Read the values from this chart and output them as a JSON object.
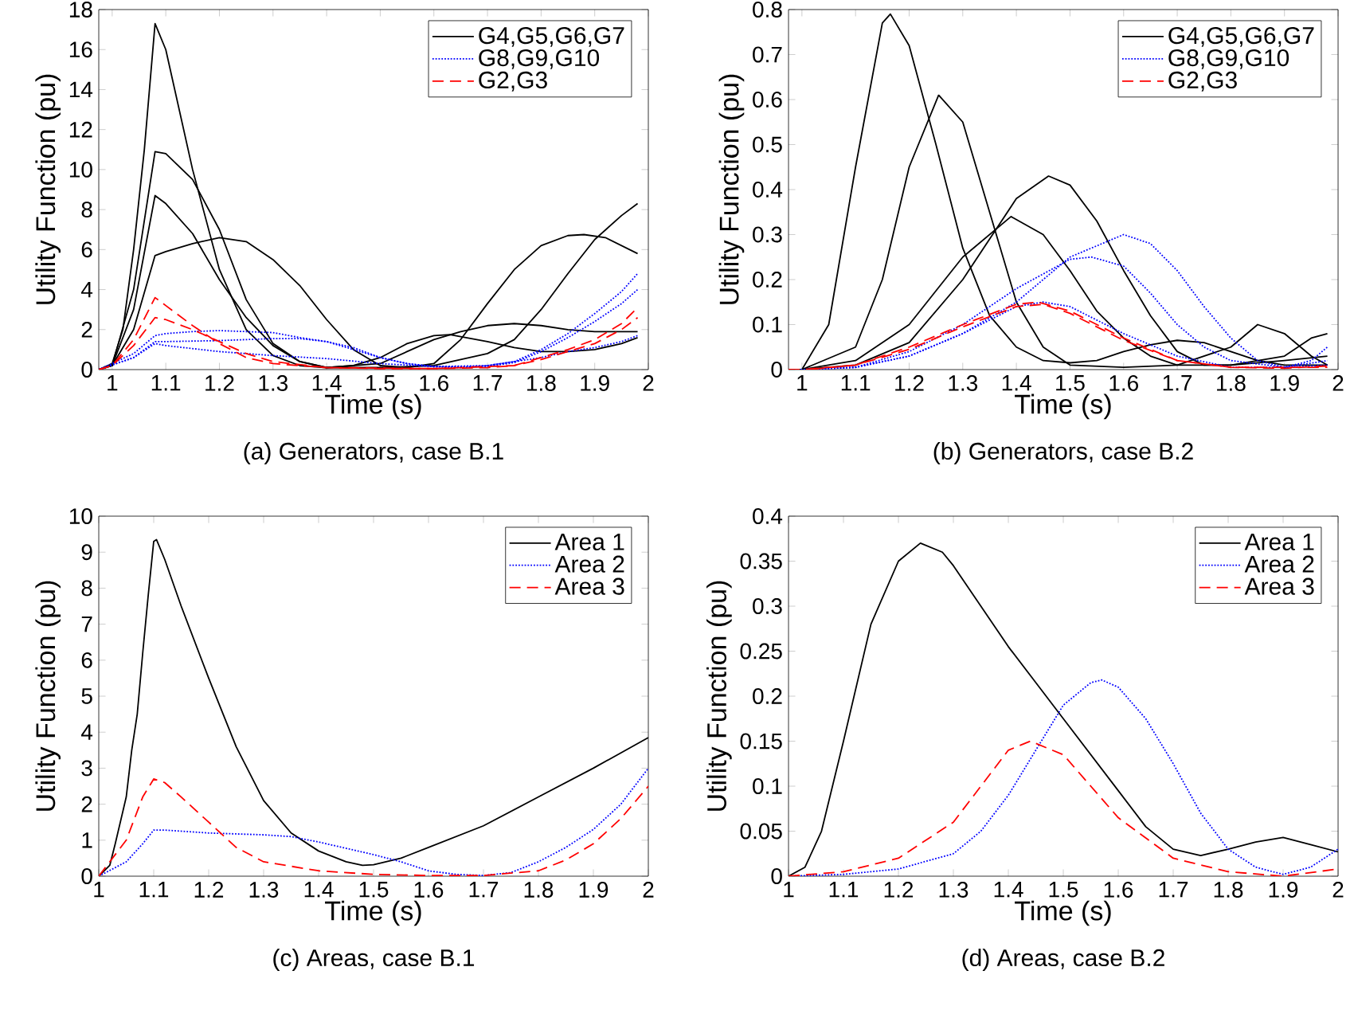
{
  "chart_data": [
    {
      "type": "line",
      "title": "(a) Generators, case B.1",
      "xlabel": "Time (s)",
      "ylabel": "Utility Function (pu)",
      "xlim": [
        0.975,
        2
      ],
      "ylim": [
        0,
        18
      ],
      "xticks": [
        1,
        1.1,
        1.2,
        1.3,
        1.4,
        1.5,
        1.6,
        1.7,
        1.8,
        1.9,
        2
      ],
      "yticks": [
        0,
        2,
        4,
        6,
        8,
        10,
        12,
        14,
        16,
        18
      ],
      "legend": "top right",
      "series": [
        {
          "name": "G4,G5,G6,G7",
          "color": "#000000",
          "line_style": "solid",
          "x": [
            0.975,
            1.0,
            1.02,
            1.04,
            1.06,
            1.08,
            1.1,
            1.15,
            1.2,
            1.25,
            1.3,
            1.35,
            1.4,
            1.5,
            1.6,
            1.7,
            1.75,
            1.8,
            1.85,
            1.9,
            1.95,
            1.98
          ],
          "values": [
            0,
            0.3,
            2,
            6,
            11,
            17.3,
            16,
            10,
            5,
            2,
            0.7,
            0.2,
            0.1,
            0.1,
            0.2,
            0.8,
            1.5,
            3,
            4.8,
            6.5,
            7.7,
            8.3
          ]
        },
        {
          "color": "#000000",
          "line_style": "solid",
          "x": [
            0.975,
            1.0,
            1.04,
            1.08,
            1.1,
            1.15,
            1.2,
            1.25,
            1.3,
            1.35,
            1.4,
            1.5,
            1.55,
            1.6,
            1.65,
            1.7,
            1.75,
            1.8,
            1.85,
            1.9,
            1.95,
            1.98
          ],
          "values": [
            0,
            0.2,
            4,
            10.9,
            10.8,
            9.5,
            7,
            3.5,
            1.3,
            0.4,
            0.1,
            0.3,
            0.9,
            1.5,
            1.9,
            2.2,
            2.3,
            2.2,
            2.0,
            1.9,
            1.9,
            1.9
          ]
        },
        {
          "color": "#000000",
          "line_style": "solid",
          "x": [
            0.975,
            1.0,
            1.04,
            1.08,
            1.1,
            1.15,
            1.2,
            1.25,
            1.3,
            1.35,
            1.4,
            1.45,
            1.5,
            1.55,
            1.6,
            1.63,
            1.7,
            1.75,
            1.8,
            1.85,
            1.9,
            1.95,
            1.98
          ],
          "values": [
            0,
            0.2,
            3,
            8.7,
            8.3,
            6.8,
            4.5,
            2.6,
            1.2,
            0.4,
            0.1,
            0.2,
            0.6,
            1.3,
            1.7,
            1.75,
            1.4,
            1.1,
            0.9,
            0.9,
            1.0,
            1.3,
            1.6
          ]
        },
        {
          "color": "#000000",
          "line_style": "solid",
          "x": [
            0.975,
            1.0,
            1.04,
            1.08,
            1.1,
            1.15,
            1.2,
            1.25,
            1.3,
            1.35,
            1.4,
            1.45,
            1.5,
            1.55,
            1.6,
            1.65,
            1.7,
            1.75,
            1.8,
            1.85,
            1.88,
            1.92,
            1.98
          ],
          "values": [
            0,
            0.2,
            2,
            5.7,
            5.9,
            6.3,
            6.6,
            6.4,
            5.5,
            4.2,
            2.5,
            1.0,
            0.2,
            0.1,
            0.3,
            1.5,
            3.3,
            5.0,
            6.2,
            6.7,
            6.75,
            6.6,
            5.8
          ]
        },
        {
          "name": "G8,G9,G10",
          "color": "#0000ff",
          "line_style": "dotted",
          "x": [
            0.975,
            1.04,
            1.08,
            1.1,
            1.15,
            1.2,
            1.3,
            1.35,
            1.4,
            1.45,
            1.5,
            1.55,
            1.6,
            1.65,
            1.7,
            1.75,
            1.8,
            1.85,
            1.9,
            1.95,
            1.98
          ],
          "values": [
            0,
            0.8,
            1.7,
            1.8,
            1.9,
            1.95,
            1.85,
            1.6,
            1.4,
            1.1,
            0.6,
            0.3,
            0.15,
            0.1,
            0.2,
            0.4,
            1.0,
            1.8,
            2.8,
            3.9,
            4.8
          ]
        },
        {
          "color": "#0000ff",
          "line_style": "dotted",
          "x": [
            0.975,
            1.04,
            1.08,
            1.1,
            1.2,
            1.3,
            1.35,
            1.4,
            1.45,
            1.5,
            1.55,
            1.6,
            1.7,
            1.75,
            1.8,
            1.85,
            1.9,
            1.95,
            1.98
          ],
          "values": [
            0,
            0.6,
            1.4,
            1.4,
            1.45,
            1.55,
            1.55,
            1.4,
            1.0,
            0.6,
            0.3,
            0.15,
            0.15,
            0.35,
            0.9,
            1.6,
            2.4,
            3.3,
            4.0
          ]
        },
        {
          "color": "#0000ff",
          "line_style": "dotted",
          "x": [
            0.975,
            1.04,
            1.08,
            1.1,
            1.2,
            1.3,
            1.4,
            1.5,
            1.6,
            1.7,
            1.8,
            1.85,
            1.9,
            1.95,
            1.98
          ],
          "values": [
            0,
            0.6,
            1.3,
            1.2,
            0.9,
            0.7,
            0.55,
            0.3,
            0.15,
            0.2,
            0.6,
            0.9,
            1.1,
            1.4,
            1.7
          ]
        },
        {
          "name": "G2,G3",
          "color": "#ff0000",
          "line_style": "dashed",
          "x": [
            0.975,
            1.0,
            1.04,
            1.08,
            1.1,
            1.15,
            1.2,
            1.25,
            1.3,
            1.4,
            1.5,
            1.6,
            1.7,
            1.75,
            1.8,
            1.85,
            1.9,
            1.95,
            1.98
          ],
          "values": [
            0,
            0.2,
            1.5,
            3.6,
            3.2,
            2.2,
            1.3,
            0.6,
            0.3,
            0.1,
            0.05,
            0.05,
            0.1,
            0.2,
            0.6,
            1.0,
            1.5,
            2.3,
            3.1
          ]
        },
        {
          "color": "#ff0000",
          "line_style": "dashed",
          "x": [
            0.975,
            1.0,
            1.04,
            1.08,
            1.1,
            1.15,
            1.2,
            1.25,
            1.3,
            1.4,
            1.6,
            1.75,
            1.8,
            1.85,
            1.9,
            1.95,
            1.98
          ],
          "values": [
            0,
            0.2,
            1.2,
            2.6,
            2.5,
            2.0,
            1.4,
            0.8,
            0.4,
            0.1,
            0.05,
            0.2,
            0.5,
            0.9,
            1.3,
            2.0,
            2.6
          ]
        }
      ]
    },
    {
      "type": "line",
      "title": "(b) Generators, case B.2",
      "xlabel": "Time (s)",
      "ylabel": "Utility Function (pu)",
      "xlim": [
        0.975,
        2
      ],
      "ylim": [
        0,
        0.8
      ],
      "xticks": [
        1,
        1.1,
        1.2,
        1.3,
        1.4,
        1.5,
        1.6,
        1.7,
        1.8,
        1.9,
        2
      ],
      "yticks": [
        0,
        0.1,
        0.2,
        0.3,
        0.4,
        0.5,
        0.6,
        0.7,
        0.8
      ],
      "legend": "top right",
      "series": [
        {
          "name": "G4,G5,G6,G7",
          "color": "#000000",
          "line_style": "solid",
          "x": [
            0.975,
            1.0,
            1.05,
            1.1,
            1.15,
            1.165,
            1.2,
            1.25,
            1.3,
            1.35,
            1.4,
            1.45,
            1.5,
            1.55,
            1.6,
            1.65,
            1.7,
            1.75,
            1.8,
            1.85,
            1.9,
            1.98
          ],
          "values": [
            0,
            0,
            0.1,
            0.45,
            0.77,
            0.79,
            0.72,
            0.5,
            0.27,
            0.12,
            0.05,
            0.02,
            0.015,
            0.02,
            0.04,
            0.055,
            0.065,
            0.06,
            0.04,
            0.02,
            0.01,
            0.01
          ]
        },
        {
          "color": "#000000",
          "line_style": "solid",
          "x": [
            0.975,
            1.0,
            1.1,
            1.15,
            1.2,
            1.255,
            1.3,
            1.35,
            1.4,
            1.45,
            1.5,
            1.6,
            1.7,
            1.8,
            1.85,
            1.9,
            1.95,
            1.98
          ],
          "values": [
            0,
            0,
            0.05,
            0.2,
            0.45,
            0.61,
            0.55,
            0.35,
            0.15,
            0.05,
            0.01,
            0.005,
            0.01,
            0.05,
            0.1,
            0.08,
            0.03,
            0.01
          ]
        },
        {
          "color": "#000000",
          "line_style": "solid",
          "x": [
            0.975,
            1.0,
            1.1,
            1.2,
            1.3,
            1.39,
            1.45,
            1.5,
            1.55,
            1.6,
            1.65,
            1.7,
            1.8,
            1.9,
            1.95,
            1.98
          ],
          "values": [
            0,
            0,
            0.02,
            0.1,
            0.25,
            0.34,
            0.3,
            0.22,
            0.13,
            0.07,
            0.03,
            0.01,
            0.01,
            0.03,
            0.07,
            0.08
          ]
        },
        {
          "color": "#000000",
          "line_style": "solid",
          "x": [
            0.975,
            1.0,
            1.1,
            1.2,
            1.3,
            1.4,
            1.46,
            1.5,
            1.55,
            1.6,
            1.65,
            1.7,
            1.75,
            1.8,
            1.9,
            1.98
          ],
          "values": [
            0,
            0,
            0.01,
            0.06,
            0.2,
            0.38,
            0.43,
            0.41,
            0.33,
            0.22,
            0.12,
            0.04,
            0.01,
            0.01,
            0.02,
            0.03
          ]
        },
        {
          "name": "G8,G9,G10",
          "color": "#0000ff",
          "line_style": "dotted",
          "x": [
            0.975,
            1.0,
            1.1,
            1.2,
            1.3,
            1.4,
            1.5,
            1.6,
            1.65,
            1.7,
            1.75,
            1.8,
            1.85,
            1.9,
            1.95,
            1.98
          ],
          "values": [
            0,
            0,
            0.005,
            0.03,
            0.08,
            0.15,
            0.25,
            0.3,
            0.28,
            0.22,
            0.14,
            0.07,
            0.02,
            0.005,
            0.02,
            0.05
          ]
        },
        {
          "color": "#0000ff",
          "line_style": "dotted",
          "x": [
            0.975,
            1.0,
            1.1,
            1.2,
            1.3,
            1.4,
            1.5,
            1.54,
            1.6,
            1.65,
            1.7,
            1.75,
            1.8,
            1.9,
            1.98
          ],
          "values": [
            0,
            0,
            0.005,
            0.04,
            0.1,
            0.18,
            0.245,
            0.25,
            0.23,
            0.17,
            0.1,
            0.05,
            0.02,
            0.005,
            0.02
          ]
        },
        {
          "color": "#0000ff",
          "line_style": "dotted",
          "x": [
            0.975,
            1.0,
            1.1,
            1.2,
            1.3,
            1.4,
            1.45,
            1.5,
            1.6,
            1.7,
            1.8,
            1.9,
            1.98
          ],
          "values": [
            0,
            0,
            0.005,
            0.03,
            0.08,
            0.14,
            0.15,
            0.14,
            0.08,
            0.03,
            0.005,
            0.005,
            0.01
          ]
        },
        {
          "name": "G2,G3",
          "color": "#ff0000",
          "line_style": "dashed",
          "x": [
            0.975,
            1.0,
            1.1,
            1.2,
            1.3,
            1.4,
            1.44,
            1.5,
            1.6,
            1.7,
            1.8,
            1.98
          ],
          "values": [
            0,
            0,
            0.01,
            0.05,
            0.1,
            0.145,
            0.15,
            0.13,
            0.07,
            0.02,
            0.005,
            0.005
          ]
        },
        {
          "color": "#ff0000",
          "line_style": "dashed",
          "x": [
            1.02,
            1.1,
            1.2,
            1.3,
            1.4,
            1.45,
            1.5,
            1.6,
            1.7,
            1.8,
            1.9,
            1.98
          ],
          "values": [
            0.001,
            0.01,
            0.045,
            0.095,
            0.14,
            0.145,
            0.125,
            0.065,
            0.02,
            0.005,
            0.003,
            0.008
          ]
        }
      ]
    },
    {
      "type": "line",
      "title": "(c) Areas, case B.1",
      "xlabel": "Time (s)",
      "ylabel": "Utility Function (pu)",
      "xlim": [
        1,
        2
      ],
      "ylim": [
        0,
        10
      ],
      "xticks": [
        1,
        1.1,
        1.2,
        1.3,
        1.4,
        1.5,
        1.6,
        1.7,
        1.8,
        1.9,
        2
      ],
      "yticks": [
        0,
        1,
        2,
        3,
        4,
        5,
        6,
        7,
        8,
        9,
        10
      ],
      "legend": "top right",
      "series": [
        {
          "name": "Area 1",
          "color": "#000000",
          "line_style": "solid",
          "x": [
            1.0,
            1.02,
            1.03,
            1.05,
            1.06,
            1.07,
            1.08,
            1.09,
            1.1,
            1.105,
            1.12,
            1.15,
            1.2,
            1.25,
            1.3,
            1.35,
            1.4,
            1.45,
            1.48,
            1.5,
            1.55,
            1.6,
            1.7,
            1.8,
            1.9,
            2.0
          ],
          "values": [
            0,
            0.3,
            0.9,
            2.2,
            3.5,
            4.5,
            6.2,
            7.8,
            9.3,
            9.35,
            8.8,
            7.5,
            5.5,
            3.6,
            2.1,
            1.2,
            0.7,
            0.4,
            0.3,
            0.32,
            0.5,
            0.8,
            1.4,
            2.2,
            3.0,
            3.85
          ]
        },
        {
          "name": "Area 2",
          "color": "#0000ff",
          "line_style": "dotted",
          "x": [
            1.0,
            1.05,
            1.08,
            1.1,
            1.12,
            1.2,
            1.3,
            1.35,
            1.4,
            1.5,
            1.55,
            1.6,
            1.65,
            1.7,
            1.75,
            1.8,
            1.85,
            1.9,
            1.95,
            2.0
          ],
          "values": [
            0,
            0.4,
            0.9,
            1.28,
            1.28,
            1.2,
            1.15,
            1.1,
            0.95,
            0.6,
            0.4,
            0.15,
            0.05,
            0.02,
            0.1,
            0.4,
            0.8,
            1.3,
            2.0,
            3.0
          ]
        },
        {
          "name": "Area 3",
          "color": "#ff0000",
          "line_style": "dashed",
          "x": [
            1.0,
            1.05,
            1.08,
            1.1,
            1.12,
            1.15,
            1.2,
            1.25,
            1.3,
            1.4,
            1.5,
            1.6,
            1.7,
            1.8,
            1.85,
            1.9,
            1.95,
            2.0
          ],
          "values": [
            0,
            1.0,
            2.2,
            2.7,
            2.6,
            2.2,
            1.5,
            0.8,
            0.4,
            0.15,
            0.05,
            0.02,
            0.02,
            0.15,
            0.45,
            0.9,
            1.6,
            2.5
          ]
        }
      ]
    },
    {
      "type": "line",
      "title": "(d) Areas, case B.2",
      "xlabel": "Time (s)",
      "ylabel": "Utility Function (pu)",
      "xlim": [
        1,
        2
      ],
      "ylim": [
        0,
        0.4
      ],
      "xticks": [
        1,
        1.1,
        1.2,
        1.3,
        1.4,
        1.5,
        1.6,
        1.7,
        1.8,
        1.9,
        2
      ],
      "yticks": [
        0,
        0.05,
        0.1,
        0.15,
        0.2,
        0.25,
        0.3,
        0.35,
        0.4
      ],
      "legend": "top right",
      "series": [
        {
          "name": "Area 1",
          "color": "#000000",
          "line_style": "solid",
          "x": [
            1.0,
            1.03,
            1.06,
            1.1,
            1.15,
            1.2,
            1.24,
            1.28,
            1.3,
            1.35,
            1.4,
            1.45,
            1.5,
            1.55,
            1.6,
            1.65,
            1.7,
            1.75,
            1.8,
            1.85,
            1.9,
            1.95,
            2.0
          ],
          "values": [
            0,
            0.01,
            0.05,
            0.15,
            0.28,
            0.35,
            0.37,
            0.36,
            0.345,
            0.3,
            0.255,
            0.215,
            0.175,
            0.135,
            0.095,
            0.055,
            0.03,
            0.023,
            0.03,
            0.038,
            0.043,
            0.035,
            0.027
          ]
        },
        {
          "name": "Area 2",
          "color": "#0000ff",
          "line_style": "dotted",
          "x": [
            1.0,
            1.1,
            1.2,
            1.3,
            1.35,
            1.4,
            1.45,
            1.5,
            1.55,
            1.57,
            1.6,
            1.65,
            1.7,
            1.75,
            1.8,
            1.85,
            1.9,
            1.95,
            2.0
          ],
          "values": [
            0,
            0.002,
            0.008,
            0.025,
            0.05,
            0.09,
            0.14,
            0.19,
            0.215,
            0.218,
            0.21,
            0.175,
            0.125,
            0.07,
            0.03,
            0.01,
            0.002,
            0.01,
            0.03
          ]
        },
        {
          "name": "Area 3",
          "color": "#ff0000",
          "line_style": "dashed",
          "x": [
            1.0,
            1.1,
            1.2,
            1.3,
            1.35,
            1.4,
            1.44,
            1.5,
            1.55,
            1.6,
            1.7,
            1.8,
            1.9,
            2.0
          ],
          "values": [
            0,
            0.005,
            0.02,
            0.06,
            0.1,
            0.14,
            0.15,
            0.135,
            0.1,
            0.065,
            0.02,
            0.005,
            0,
            0.008
          ]
        }
      ]
    }
  ]
}
